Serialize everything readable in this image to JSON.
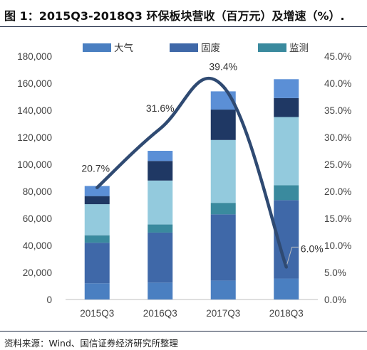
{
  "header": {
    "title": "图 1：2015Q3-2018Q3 环保板块营收（百万元）及增速（%）."
  },
  "footer": {
    "source": "资料来源：Wind、国信证券经济研究所整理"
  },
  "chart_data": {
    "type": "bar",
    "stacked": true,
    "categories": [
      "2015Q3",
      "2016Q3",
      "2017Q3",
      "2018Q3"
    ],
    "series": [
      {
        "name": "大气",
        "color": "#4a7fc1",
        "values": [
          12000,
          12500,
          14000,
          15500
        ]
      },
      {
        "name": "固废",
        "color": "#3f68a8",
        "values": [
          30000,
          37000,
          49000,
          58000
        ]
      },
      {
        "name": "监测",
        "color": "#3a8a9e",
        "values": [
          5500,
          6000,
          8500,
          11000
        ]
      },
      {
        "name": "",
        "color": "#93cadd",
        "values": [
          23000,
          32500,
          46500,
          50500
        ]
      },
      {
        "name": "",
        "color": "#1f3864",
        "values": [
          6000,
          14500,
          22500,
          14000
        ]
      },
      {
        "name": "",
        "color": "#5b8fd6",
        "values": [
          7500,
          7500,
          13500,
          14000
        ]
      }
    ],
    "line": {
      "axis": "right",
      "color": "#2f4a72",
      "values": [
        20.7,
        31.6,
        39.4,
        6.0
      ],
      "labels": [
        "20.7%",
        "31.6%",
        "39.4%",
        "6.0%"
      ]
    },
    "y_left": {
      "min": 0,
      "max": 180000,
      "step": 20000,
      "ticks": [
        "0",
        "20,000",
        "40,000",
        "60,000",
        "80,000",
        "100,000",
        "120,000",
        "140,000",
        "160,000",
        "180,000"
      ]
    },
    "y_right": {
      "min": 0,
      "max": 45,
      "step": 5,
      "ticks": [
        "0.0%",
        "5.0%",
        "10.0%",
        "15.0%",
        "20.0%",
        "25.0%",
        "30.0%",
        "35.0%",
        "40.0%",
        "45.0%"
      ]
    },
    "legend": {
      "position": "top"
    },
    "grid": false
  }
}
